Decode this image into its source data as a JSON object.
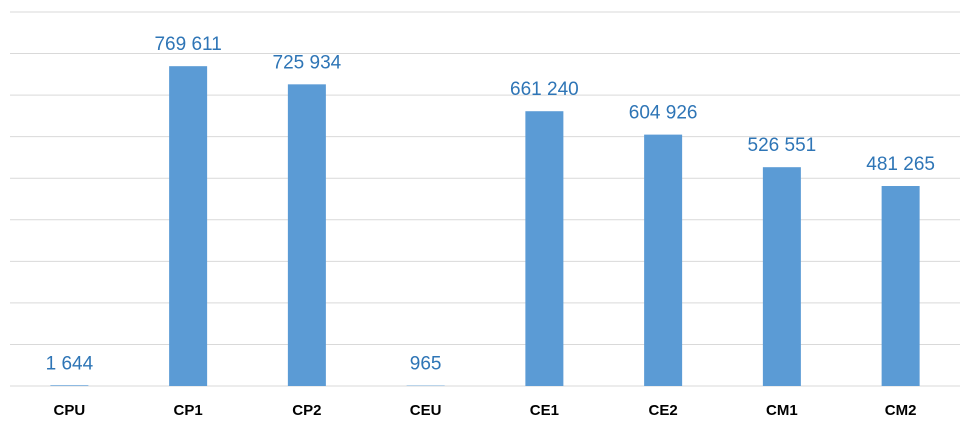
{
  "chart_data": {
    "type": "bar",
    "categories": [
      "CPU",
      "CP1",
      "CP2",
      "CEU",
      "CE1",
      "CE2",
      "CM1",
      "CM2"
    ],
    "values": [
      1644,
      769611,
      725934,
      965,
      661240,
      604926,
      526551,
      481265
    ],
    "value_labels": [
      "1 644",
      "769 611",
      "725 934",
      "965",
      "661 240",
      "604 926",
      "526 551",
      "481 265"
    ],
    "color": "#5b9bd5",
    "ylim": [
      0,
      900000
    ],
    "yticks": [
      0,
      100000,
      200000,
      300000,
      400000,
      500000,
      600000,
      700000,
      800000,
      900000
    ],
    "grid": true
  }
}
